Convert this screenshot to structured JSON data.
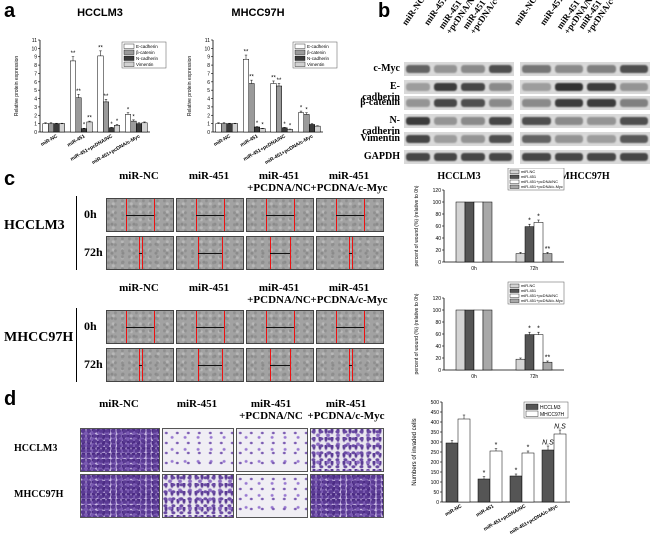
{
  "panel_letters": {
    "a": "a",
    "b": "b",
    "c": "c",
    "d": "d"
  },
  "panel_a": {
    "legend": [
      "E-cadherin",
      "β-catenin",
      "N-cadherin",
      "Vimentin"
    ],
    "legend_colors": [
      "#ffffff",
      "#9a9a9a",
      "#3a3a3a",
      "#d2d2d2"
    ],
    "ylabel": "Relative protein expression",
    "yticks": [
      "0",
      "1",
      "2",
      "3",
      "4",
      "5",
      "6",
      "7",
      "8",
      "9",
      "10",
      "11"
    ],
    "categories": [
      "miR-NC",
      "miR-451",
      "miR-451+pcDNA/NC",
      "miR-451+pcDNA/c-Myc"
    ]
  },
  "panel_b": {
    "row_labels": [
      "c-Myc",
      "E-cadherin",
      "β-catenin",
      "N-cadherin",
      "Vimentin",
      "GAPDH"
    ],
    "lane_labels": [
      "miR-NC",
      "miR-451",
      "miR-451 +pcDNA/NC",
      "miR-451 +pcDNA/c-Myc"
    ],
    "group_labels": [
      "HCCLM3",
      "MHCC97H"
    ]
  },
  "panel_c": {
    "cell_lines": [
      "HCCLM3",
      "MHCC97H"
    ],
    "columns_top": [
      "miR-NC",
      "miR-451",
      "miR-451\n+PCDNA/NC",
      "miR-451\n+PCDNA/c-Myc"
    ],
    "columns_bottom": [
      "miR-NC",
      "miR-451",
      "miR-451\n+PCDNA/NC",
      "miR-451\n+PCDNA/c-Myc"
    ],
    "time_labels": [
      "0h",
      "72h"
    ],
    "ylabel": "percent of wound (%)\n(relative to 0h)",
    "legend": [
      "miR-NC",
      "miR-451",
      "miR-451+pcDNA/NC",
      "miR-451+pcDNA/c-Myc"
    ],
    "colors": [
      "#d4d4d4",
      "#555555",
      "#ffffff",
      "#a8a8a8"
    ],
    "yticks": [
      "0",
      "20",
      "40",
      "60",
      "80",
      "100",
      "120"
    ],
    "xticks": [
      "0h",
      "72h"
    ]
  },
  "panel_d": {
    "columns": [
      "miR-NC",
      "miR-451",
      "miR-451\n+PCDNA/NC",
      "miR-451\n+PCDNA/c-Myc"
    ],
    "rows": [
      "HCCLM3",
      "MHCC97H"
    ],
    "ylabel": "Numbers of invaded cells",
    "legend": [
      "HCCLM3",
      "MHCC97H"
    ],
    "colors": [
      "#555555",
      "#ffffff"
    ],
    "yticks": [
      "0",
      "50",
      "100",
      "150",
      "200",
      "250",
      "300",
      "350",
      "400",
      "450",
      "500"
    ],
    "categories": [
      "miR-NC",
      "miR-451",
      "miR-451+pcDNA/NC",
      "miR-451+pcDNA/c-Myc"
    ]
  },
  "chart_data": [
    {
      "type": "bar",
      "title": "HCCLM3",
      "ylabel": "Relative protein expression",
      "ylim": [
        0,
        11
      ],
      "categories": [
        "miR-NC",
        "miR-451",
        "miR-451+pcDNA/NC",
        "miR-451+pcDNA/c-Myc"
      ],
      "series": [
        {
          "name": "E-cadherin",
          "values": [
            1,
            8.5,
            9.1,
            2.1
          ],
          "err": [
            0.1,
            0.5,
            0.6,
            0.2
          ]
        },
        {
          "name": "β-catenin",
          "values": [
            1,
            4.1,
            3.6,
            1.3
          ],
          "err": [
            0.1,
            0.4,
            0.3,
            0.15
          ]
        },
        {
          "name": "N-cadherin",
          "values": [
            1,
            0.4,
            0.5,
            1.0
          ],
          "err": [
            0.05,
            0.05,
            0.05,
            0.1
          ]
        },
        {
          "name": "Vimentin",
          "values": [
            1,
            1.2,
            0.8,
            1.1
          ],
          "err": [
            0.05,
            0.1,
            0.1,
            0.1
          ]
        }
      ],
      "annotations": [
        [
          "",
          "**",
          "**",
          "*"
        ],
        [
          "",
          "**",
          "**",
          "*"
        ],
        [
          "",
          "*",
          "*",
          ""
        ],
        [
          "",
          "**",
          "*",
          ""
        ]
      ]
    },
    {
      "type": "bar",
      "title": "MHCC97H",
      "ylabel": "Relative protein expression",
      "ylim": [
        0,
        11
      ],
      "categories": [
        "miR-NC",
        "miR-451",
        "miR-451+pcDNA/NC",
        "miR-451+pcDNA/c-Myc"
      ],
      "series": [
        {
          "name": "E-cadherin",
          "values": [
            1,
            8.7,
            5.8,
            2.3
          ],
          "err": [
            0.1,
            0.5,
            0.3,
            0.2
          ]
        },
        {
          "name": "β-catenin",
          "values": [
            1,
            5.8,
            5.5,
            2.1
          ],
          "err": [
            0.1,
            0.4,
            0.3,
            0.2
          ]
        },
        {
          "name": "N-cadherin",
          "values": [
            1,
            0.6,
            0.5,
            0.9
          ],
          "err": [
            0.05,
            0.05,
            0.05,
            0.1
          ]
        },
        {
          "name": "Vimentin",
          "values": [
            1,
            0.4,
            0.3,
            0.7
          ],
          "err": [
            0.05,
            0.05,
            0.05,
            0.05
          ]
        }
      ],
      "annotations": [
        [
          "",
          "**",
          "**",
          "*"
        ],
        [
          "",
          "**",
          "**",
          "*"
        ],
        [
          "",
          "*",
          "*",
          ""
        ],
        [
          "",
          "*",
          "*",
          ""
        ]
      ]
    },
    {
      "type": "bar",
      "ylabel": "percent of wound (%) (relative to 0h)",
      "ylim": [
        0,
        120
      ],
      "categories": [
        "0h",
        "72h"
      ],
      "series": [
        {
          "name": "miR-NC",
          "values": [
            100,
            14
          ],
          "err": [
            0,
            2
          ]
        },
        {
          "name": "miR-451",
          "values": [
            100,
            59
          ],
          "err": [
            0,
            4
          ]
        },
        {
          "name": "miR-451+pcDNA/NC",
          "values": [
            100,
            66
          ],
          "err": [
            0,
            4
          ]
        },
        {
          "name": "miR-451+pcDNA/c-Myc",
          "values": [
            100,
            14
          ],
          "err": [
            0,
            2
          ]
        }
      ],
      "annotations": [
        [
          "",
          ""
        ],
        [
          "",
          "*"
        ],
        [
          "",
          "*"
        ],
        [
          "",
          "**"
        ]
      ],
      "lead_annotation": "**"
    },
    {
      "type": "bar",
      "ylabel": "percent of wound (%) (relative to 0h)",
      "ylim": [
        0,
        120
      ],
      "categories": [
        "0h",
        "72h"
      ],
      "series": [
        {
          "name": "miR-NC",
          "values": [
            100,
            18
          ],
          "err": [
            0,
            2
          ]
        },
        {
          "name": "miR-451",
          "values": [
            100,
            59
          ],
          "err": [
            0,
            4
          ]
        },
        {
          "name": "miR-451+pcDNA/NC",
          "values": [
            100,
            59
          ],
          "err": [
            0,
            4
          ]
        },
        {
          "name": "miR-451+pcDNA/c-Myc",
          "values": [
            100,
            13
          ],
          "err": [
            0,
            2
          ]
        }
      ],
      "annotations": [
        [
          "",
          ""
        ],
        [
          "",
          "*"
        ],
        [
          "",
          "*"
        ],
        [
          "",
          "**"
        ]
      ],
      "lead_annotation": "**"
    },
    {
      "type": "bar",
      "ylabel": "Numbers of invaded cells",
      "ylim": [
        0,
        500
      ],
      "categories": [
        "miR-NC",
        "miR-451",
        "miR-451+pcDNA/NC",
        "miR-451+pcDNA/c-Myc"
      ],
      "series": [
        {
          "name": "HCCLM3",
          "values": [
            295,
            115,
            130,
            260
          ],
          "err": [
            12,
            12,
            10,
            20
          ]
        },
        {
          "name": "MHCC97H",
          "values": [
            415,
            255,
            245,
            340
          ],
          "err": [
            20,
            12,
            10,
            20
          ]
        }
      ],
      "annotations": [
        [
          "",
          "*",
          "*",
          "N.S"
        ],
        [
          "",
          "*",
          "*",
          "N.S"
        ]
      ]
    }
  ]
}
